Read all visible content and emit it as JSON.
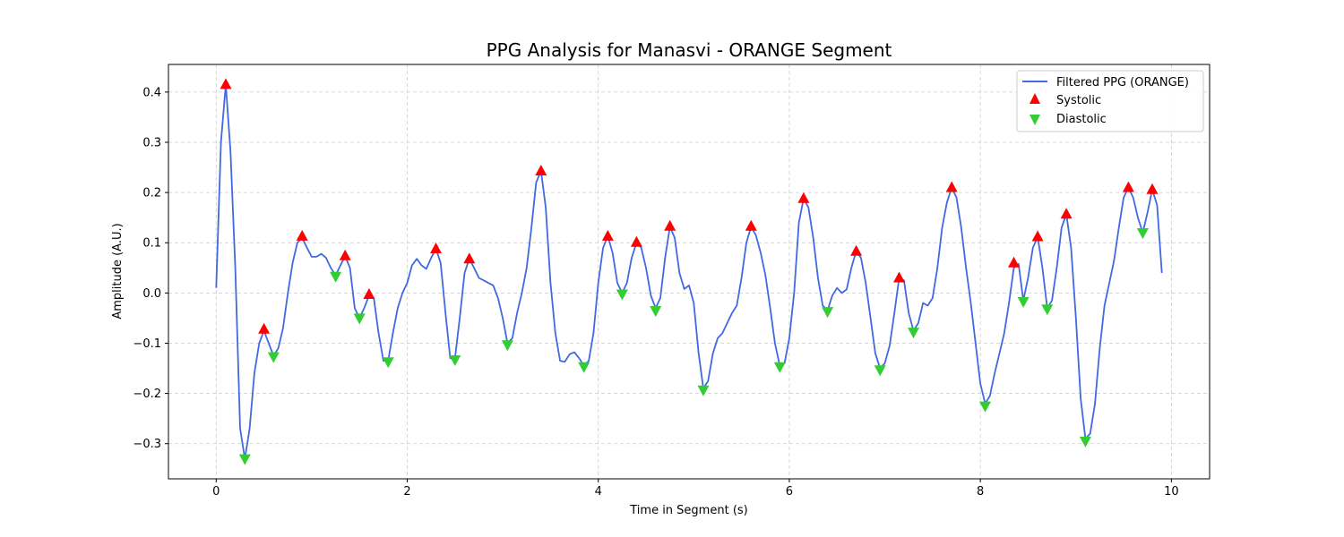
{
  "chart_data": {
    "type": "line",
    "title": "PPG Analysis for Manasvi - ORANGE Segment",
    "xlabel": "Time in Segment (s)",
    "ylabel": "Amplitude (A.U.)",
    "xlim": [
      -0.5,
      10.4
    ],
    "ylim": [
      -0.37,
      0.455
    ],
    "x_ticks": [
      0,
      2,
      4,
      6,
      8,
      10
    ],
    "y_ticks": [
      -0.3,
      -0.2,
      -0.1,
      0.0,
      0.1,
      0.2,
      0.3,
      0.4
    ],
    "x_tick_labels": [
      "0",
      "2",
      "4",
      "6",
      "8",
      "10"
    ],
    "y_tick_labels": [
      "−0.3",
      "−0.2",
      "−0.1",
      "0.0",
      "0.1",
      "0.2",
      "0.3",
      "0.4"
    ],
    "grid": true,
    "legend_position": "top-right",
    "series": [
      {
        "name": "Filtered PPG (ORANGE)",
        "kind": "line",
        "color": "#4169e1",
        "points": [
          [
            0,
            0.01
          ],
          [
            0.05,
            0.3
          ],
          [
            0.1,
            0.415
          ],
          [
            0.15,
            0.28
          ],
          [
            0.2,
            0.05
          ],
          [
            0.25,
            -0.27
          ],
          [
            0.3,
            -0.33
          ],
          [
            0.35,
            -0.27
          ],
          [
            0.4,
            -0.16
          ],
          [
            0.45,
            -0.1
          ],
          [
            0.5,
            -0.075
          ],
          [
            0.55,
            -0.1
          ],
          [
            0.6,
            -0.125
          ],
          [
            0.65,
            -0.11
          ],
          [
            0.7,
            -0.07
          ],
          [
            0.75,
            0.0
          ],
          [
            0.8,
            0.06
          ],
          [
            0.85,
            0.1
          ],
          [
            0.9,
            0.11
          ],
          [
            0.95,
            0.09
          ],
          [
            1.0,
            0.072
          ],
          [
            1.05,
            0.072
          ],
          [
            1.1,
            0.078
          ],
          [
            1.15,
            0.07
          ],
          [
            1.2,
            0.05
          ],
          [
            1.25,
            0.035
          ],
          [
            1.3,
            0.055
          ],
          [
            1.35,
            0.073
          ],
          [
            1.4,
            0.05
          ],
          [
            1.45,
            -0.03
          ],
          [
            1.5,
            -0.05
          ],
          [
            1.55,
            -0.03
          ],
          [
            1.6,
            -0.005
          ],
          [
            1.65,
            -0.01
          ],
          [
            1.7,
            -0.08
          ],
          [
            1.75,
            -0.135
          ],
          [
            1.8,
            -0.135
          ],
          [
            1.85,
            -0.08
          ],
          [
            1.9,
            -0.03
          ],
          [
            1.95,
            0.0
          ],
          [
            2.0,
            0.02
          ],
          [
            2.05,
            0.055
          ],
          [
            2.1,
            0.068
          ],
          [
            2.15,
            0.055
          ],
          [
            2.2,
            0.048
          ],
          [
            2.25,
            0.07
          ],
          [
            2.3,
            0.088
          ],
          [
            2.35,
            0.06
          ],
          [
            2.4,
            -0.04
          ],
          [
            2.45,
            -0.13
          ],
          [
            2.5,
            -0.13
          ],
          [
            2.55,
            -0.05
          ],
          [
            2.6,
            0.04
          ],
          [
            2.65,
            0.068
          ],
          [
            2.7,
            0.05
          ],
          [
            2.75,
            0.03
          ],
          [
            2.8,
            0.025
          ],
          [
            2.9,
            0.015
          ],
          [
            2.95,
            -0.01
          ],
          [
            3.0,
            -0.05
          ],
          [
            3.05,
            -0.1
          ],
          [
            3.1,
            -0.09
          ],
          [
            3.15,
            -0.04
          ],
          [
            3.2,
            0.0
          ],
          [
            3.25,
            0.05
          ],
          [
            3.3,
            0.13
          ],
          [
            3.35,
            0.22
          ],
          [
            3.4,
            0.243
          ],
          [
            3.45,
            0.17
          ],
          [
            3.5,
            0.02
          ],
          [
            3.55,
            -0.08
          ],
          [
            3.6,
            -0.135
          ],
          [
            3.65,
            -0.137
          ],
          [
            3.7,
            -0.122
          ],
          [
            3.75,
            -0.118
          ],
          [
            3.8,
            -0.13
          ],
          [
            3.85,
            -0.145
          ],
          [
            3.9,
            -0.135
          ],
          [
            3.95,
            -0.08
          ],
          [
            4.0,
            0.02
          ],
          [
            4.05,
            0.09
          ],
          [
            4.1,
            0.113
          ],
          [
            4.15,
            0.08
          ],
          [
            4.2,
            0.02
          ],
          [
            4.25,
            0.0
          ],
          [
            4.3,
            0.02
          ],
          [
            4.35,
            0.07
          ],
          [
            4.4,
            0.1
          ],
          [
            4.45,
            0.09
          ],
          [
            4.5,
            0.05
          ],
          [
            4.55,
            -0.005
          ],
          [
            4.6,
            -0.03
          ],
          [
            4.65,
            -0.01
          ],
          [
            4.7,
            0.07
          ],
          [
            4.75,
            0.132
          ],
          [
            4.8,
            0.11
          ],
          [
            4.85,
            0.04
          ],
          [
            4.9,
            0.008
          ],
          [
            4.95,
            0.015
          ],
          [
            5.0,
            -0.02
          ],
          [
            5.05,
            -0.12
          ],
          [
            5.1,
            -0.19
          ],
          [
            5.15,
            -0.175
          ],
          [
            5.2,
            -0.12
          ],
          [
            5.25,
            -0.09
          ],
          [
            5.3,
            -0.08
          ],
          [
            5.35,
            -0.06
          ],
          [
            5.4,
            -0.04
          ],
          [
            5.45,
            -0.025
          ],
          [
            5.5,
            0.03
          ],
          [
            5.55,
            0.1
          ],
          [
            5.6,
            0.132
          ],
          [
            5.65,
            0.115
          ],
          [
            5.7,
            0.08
          ],
          [
            5.75,
            0.035
          ],
          [
            5.8,
            -0.03
          ],
          [
            5.85,
            -0.1
          ],
          [
            5.9,
            -0.145
          ],
          [
            5.95,
            -0.14
          ],
          [
            6.0,
            -0.09
          ],
          [
            6.05,
            0.0
          ],
          [
            6.1,
            0.14
          ],
          [
            6.15,
            0.188
          ],
          [
            6.2,
            0.17
          ],
          [
            6.25,
            0.11
          ],
          [
            6.3,
            0.03
          ],
          [
            6.35,
            -0.025
          ],
          [
            6.4,
            -0.035
          ],
          [
            6.45,
            -0.005
          ],
          [
            6.5,
            0.01
          ],
          [
            6.55,
            0.0
          ],
          [
            6.6,
            0.007
          ],
          [
            6.65,
            0.05
          ],
          [
            6.7,
            0.083
          ],
          [
            6.75,
            0.07
          ],
          [
            6.8,
            0.02
          ],
          [
            6.85,
            -0.05
          ],
          [
            6.9,
            -0.12
          ],
          [
            6.95,
            -0.15
          ],
          [
            7.0,
            -0.14
          ],
          [
            7.05,
            -0.105
          ],
          [
            7.1,
            -0.04
          ],
          [
            7.15,
            0.03
          ],
          [
            7.2,
            0.025
          ],
          [
            7.25,
            -0.04
          ],
          [
            7.3,
            -0.075
          ],
          [
            7.35,
            -0.06
          ],
          [
            7.4,
            -0.02
          ],
          [
            7.45,
            -0.025
          ],
          [
            7.5,
            -0.01
          ],
          [
            7.55,
            0.05
          ],
          [
            7.6,
            0.13
          ],
          [
            7.65,
            0.18
          ],
          [
            7.7,
            0.21
          ],
          [
            7.75,
            0.19
          ],
          [
            7.8,
            0.13
          ],
          [
            7.85,
            0.05
          ],
          [
            7.9,
            -0.02
          ],
          [
            7.95,
            -0.1
          ],
          [
            8.0,
            -0.18
          ],
          [
            8.05,
            -0.22
          ],
          [
            8.1,
            -0.205
          ],
          [
            8.15,
            -0.16
          ],
          [
            8.2,
            -0.12
          ],
          [
            8.25,
            -0.08
          ],
          [
            8.3,
            -0.02
          ],
          [
            8.35,
            0.05
          ],
          [
            8.4,
            0.058
          ],
          [
            8.45,
            -0.015
          ],
          [
            8.5,
            0.03
          ],
          [
            8.55,
            0.09
          ],
          [
            8.6,
            0.112
          ],
          [
            8.65,
            0.05
          ],
          [
            8.7,
            -0.03
          ],
          [
            8.75,
            -0.015
          ],
          [
            8.8,
            0.05
          ],
          [
            8.85,
            0.13
          ],
          [
            8.9,
            0.157
          ],
          [
            8.95,
            0.09
          ],
          [
            9.0,
            -0.05
          ],
          [
            9.05,
            -0.21
          ],
          [
            9.1,
            -0.29
          ],
          [
            9.15,
            -0.28
          ],
          [
            9.2,
            -0.22
          ],
          [
            9.25,
            -0.11
          ],
          [
            9.3,
            -0.025
          ],
          [
            9.35,
            0.02
          ],
          [
            9.4,
            0.065
          ],
          [
            9.45,
            0.13
          ],
          [
            9.5,
            0.19
          ],
          [
            9.55,
            0.21
          ],
          [
            9.6,
            0.19
          ],
          [
            9.65,
            0.15
          ],
          [
            9.7,
            0.12
          ],
          [
            9.75,
            0.16
          ],
          [
            9.8,
            0.206
          ],
          [
            9.85,
            0.175
          ],
          [
            9.9,
            0.04
          ]
        ]
      },
      {
        "name": "Systolic",
        "kind": "marker",
        "marker": "triangle-up",
        "color": "#ff0000",
        "points": [
          [
            0.1,
            0.415
          ],
          [
            0.5,
            -0.072
          ],
          [
            0.9,
            0.113
          ],
          [
            1.35,
            0.074
          ],
          [
            1.6,
            -0.003
          ],
          [
            2.3,
            0.088
          ],
          [
            2.65,
            0.068
          ],
          [
            3.4,
            0.243
          ],
          [
            4.1,
            0.113
          ],
          [
            4.4,
            0.101
          ],
          [
            4.75,
            0.133
          ],
          [
            5.6,
            0.133
          ],
          [
            6.15,
            0.188
          ],
          [
            6.7,
            0.083
          ],
          [
            7.15,
            0.03
          ],
          [
            7.7,
            0.21
          ],
          [
            8.35,
            0.06
          ],
          [
            8.6,
            0.112
          ],
          [
            8.9,
            0.157
          ],
          [
            9.55,
            0.21
          ],
          [
            9.8,
            0.206
          ]
        ]
      },
      {
        "name": "Diastolic",
        "kind": "marker",
        "marker": "triangle-down",
        "color": "#32cd32",
        "points": [
          [
            0.3,
            -0.33
          ],
          [
            0.6,
            -0.127
          ],
          [
            1.25,
            0.033
          ],
          [
            1.5,
            -0.05
          ],
          [
            1.8,
            -0.137
          ],
          [
            2.5,
            -0.133
          ],
          [
            3.05,
            -0.103
          ],
          [
            3.85,
            -0.147
          ],
          [
            4.25,
            -0.002
          ],
          [
            4.6,
            -0.035
          ],
          [
            5.1,
            -0.193
          ],
          [
            5.9,
            -0.147
          ],
          [
            6.4,
            -0.037
          ],
          [
            6.95,
            -0.153
          ],
          [
            7.3,
            -0.078
          ],
          [
            8.05,
            -0.225
          ],
          [
            8.45,
            -0.017
          ],
          [
            8.7,
            -0.032
          ],
          [
            9.1,
            -0.295
          ],
          [
            9.7,
            0.12
          ]
        ]
      }
    ]
  }
}
